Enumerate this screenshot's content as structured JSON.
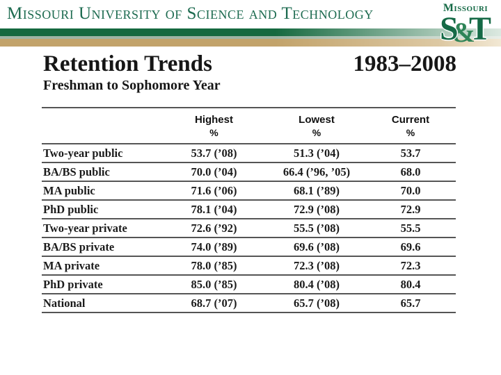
{
  "banner": {
    "university": "Missouri University of Science and Technology"
  },
  "logo": {
    "missouri": "Missouri",
    "s": "S",
    "amp": "&",
    "t": "T"
  },
  "title": {
    "main": "Retention Trends",
    "years": "1983–2008",
    "subtitle": "Freshman to Sophomore Year"
  },
  "table": {
    "columns": [
      {
        "label": "Highest",
        "unit": "%"
      },
      {
        "label": "Lowest",
        "unit": "%"
      },
      {
        "label": "Current",
        "unit": "%"
      }
    ],
    "rows": [
      {
        "label": "Two-year public",
        "highest": "53.7 (’08)",
        "lowest": "51.3 (’04)",
        "current": "53.7"
      },
      {
        "label": "BA/BS public",
        "highest": "70.0 (’04)",
        "lowest": "66.4 (’96, ’05)",
        "current": "68.0"
      },
      {
        "label": "MA public",
        "highest": "71.6 (’06)",
        "lowest": "68.1 (’89)",
        "current": "70.0"
      },
      {
        "label": "PhD public",
        "highest": "78.1 (’04)",
        "lowest": "72.9 (’08)",
        "current": "72.9"
      },
      {
        "label": "Two-year private",
        "highest": "72.6 (’92)",
        "lowest": "55.5 (’08)",
        "current": "55.5"
      },
      {
        "label": "BA/BS private",
        "highest": "74.0 (’89)",
        "lowest": "69.6 (’08)",
        "current": "69.6"
      },
      {
        "label": "MA private",
        "highest": "78.0 (’85)",
        "lowest": "72.3 (’08)",
        "current": "72.3"
      },
      {
        "label": "PhD private",
        "highest": "85.0 (’85)",
        "lowest": "80.4 (’08)",
        "current": "80.4"
      },
      {
        "label": "National",
        "highest": "68.7 (’07)",
        "lowest": "65.7 (’08)",
        "current": "65.7"
      }
    ]
  },
  "colors": {
    "brand_green": "#15693f",
    "sage": "#9eb4a4",
    "tan": "#c2a36b",
    "banner_text_green": "#1d6b50",
    "logo_green": "#156a46",
    "text": "#1b1b1b",
    "rule": "#555555"
  }
}
